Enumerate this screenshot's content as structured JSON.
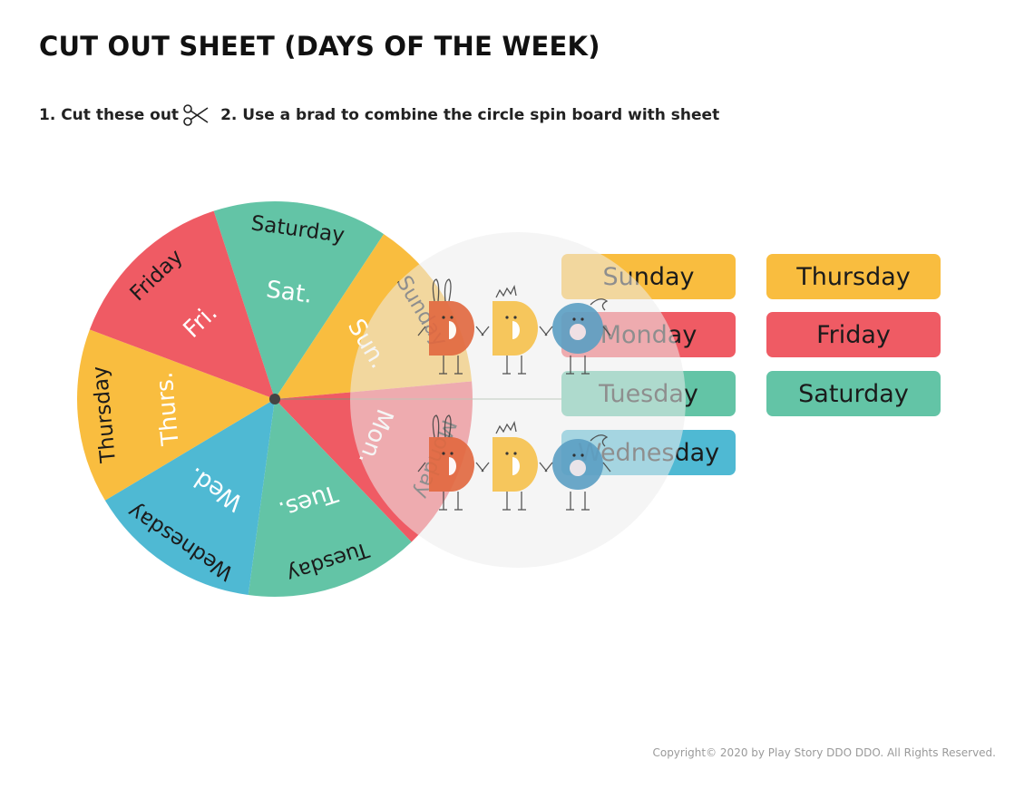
{
  "title": "CUT OUT SHEET (DAYS OF THE WEEK)",
  "instructions": {
    "step1": "1. Cut these out",
    "step2": "2. Use a brad to combine the circle spin board with sheet"
  },
  "colors": {
    "yellow": "#F9BD3F",
    "red": "#EF5B64",
    "green": "#63C4A6",
    "blue": "#4FB9D3",
    "pivot": "#444444"
  },
  "wheel": {
    "slices": [
      {
        "day": "Saturday",
        "abbr": "Sat.",
        "color": "#63C4A6"
      },
      {
        "day": "Sunday",
        "abbr": "Sun.",
        "color": "#F9BD3F"
      },
      {
        "day": "Monday",
        "abbr": "Mon.",
        "color": "#EF5B64"
      },
      {
        "day": "Tuesday",
        "abbr": "Tues.",
        "color": "#63C4A6"
      },
      {
        "day": "Wednesday",
        "abbr": "Wed.",
        "color": "#4FB9D3"
      },
      {
        "day": "Thursday",
        "abbr": "Thurs.",
        "color": "#F9BD3F"
      },
      {
        "day": "Friday",
        "abbr": "Fri.",
        "color": "#EF5B64"
      }
    ]
  },
  "cards": [
    {
      "label": "Sunday",
      "color": "#F9BD3F"
    },
    {
      "label": "Monday",
      "color": "#EF5B64"
    },
    {
      "label": "Tuesday",
      "color": "#63C4A6"
    },
    {
      "label": "Wednesday",
      "color": "#4FB9D3"
    },
    {
      "label": "Thursday",
      "color": "#F9BD3F"
    },
    {
      "label": "Friday",
      "color": "#EF5B64"
    },
    {
      "label": "Saturday",
      "color": "#63C4A6"
    }
  ],
  "mascots": {
    "top": [
      {
        "icon": "bunny-d-mascot-icon",
        "color": "#E2683F"
      },
      {
        "icon": "crown-d-mascot-icon",
        "color": "#F7C24C"
      },
      {
        "icon": "swirl-o-mascot-icon",
        "color": "#5B9FC4"
      }
    ],
    "bottom": [
      {
        "icon": "bunny-d-mascot-icon",
        "color": "#E2683F"
      },
      {
        "icon": "crown-d-mascot-icon",
        "color": "#F7C24C"
      },
      {
        "icon": "swirl-o-mascot-icon",
        "color": "#5B9FC4"
      }
    ]
  },
  "copyright": "Copyright© 2020 by Play Story DDO DDO. All Rights Reserved."
}
